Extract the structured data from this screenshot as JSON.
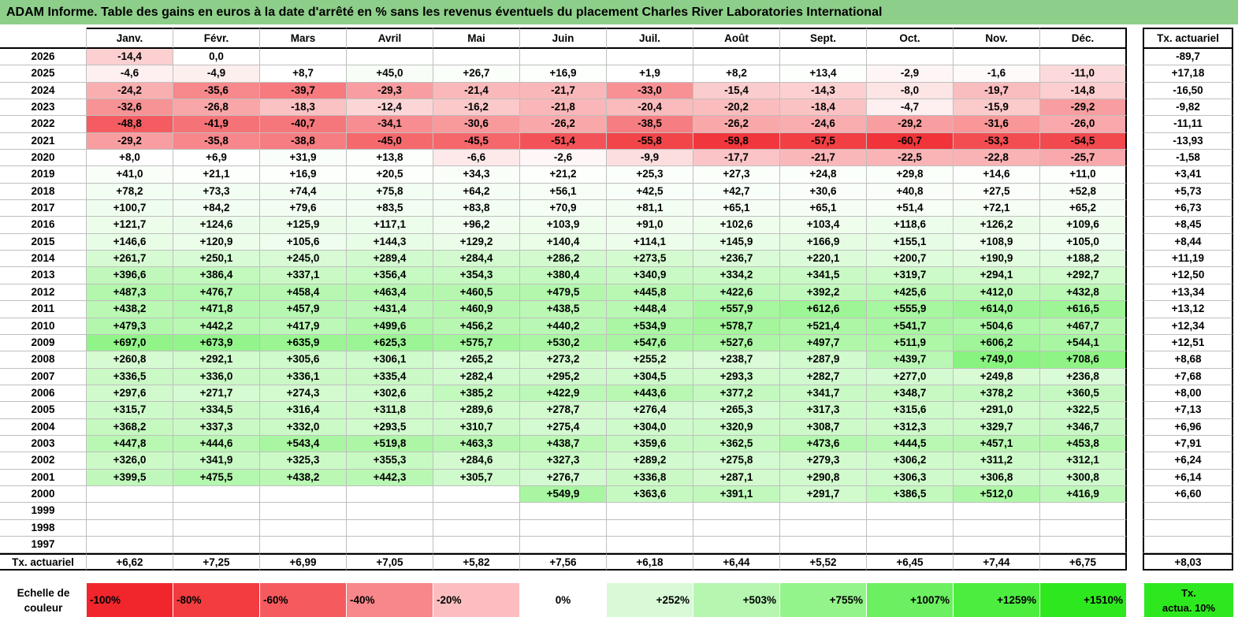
{
  "title": "ADAM Informe. Table des gains en euros à la date d'arrêté en % sans les revenus éventuels du placement Charles River Laboratories International",
  "months": [
    "Janv.",
    "Févr.",
    "Mars",
    "Avril",
    "Mai",
    "Juin",
    "Juil.",
    "Août",
    "Sept.",
    "Oct.",
    "Nov.",
    "Déc."
  ],
  "side_header": "Tx. actuariel",
  "rows": [
    {
      "year": "2026",
      "vals": [
        "-14,4",
        "0,0",
        "",
        "",
        "",
        "",
        "",
        "",
        "",
        "",
        "",
        ""
      ],
      "tx": "-89,7"
    },
    {
      "year": "2025",
      "vals": [
        "-4,6",
        "-4,9",
        "+8,7",
        "+45,0",
        "+26,7",
        "+16,9",
        "+1,9",
        "+8,2",
        "+13,4",
        "-2,9",
        "-1,6",
        "-11,0"
      ],
      "tx": "+17,18"
    },
    {
      "year": "2024",
      "vals": [
        "-24,2",
        "-35,6",
        "-39,7",
        "-29,3",
        "-21,4",
        "-21,7",
        "-33,0",
        "-15,4",
        "-14,3",
        "-8,0",
        "-19,7",
        "-14,8"
      ],
      "tx": "-16,50"
    },
    {
      "year": "2023",
      "vals": [
        "-32,6",
        "-26,8",
        "-18,3",
        "-12,4",
        "-16,2",
        "-21,8",
        "-20,4",
        "-20,2",
        "-18,4",
        "-4,7",
        "-15,9",
        "-29,2"
      ],
      "tx": "-9,82"
    },
    {
      "year": "2022",
      "vals": [
        "-48,8",
        "-41,9",
        "-40,7",
        "-34,1",
        "-30,6",
        "-26,2",
        "-38,5",
        "-26,2",
        "-24,6",
        "-29,2",
        "-31,6",
        "-26,0"
      ],
      "tx": "-11,11"
    },
    {
      "year": "2021",
      "vals": [
        "-29,2",
        "-35,8",
        "-38,8",
        "-45,0",
        "-45,5",
        "-51,4",
        "-55,8",
        "-59,8",
        "-57,5",
        "-60,7",
        "-53,3",
        "-54,5"
      ],
      "tx": "-13,93"
    },
    {
      "year": "2020",
      "vals": [
        "+8,0",
        "+6,9",
        "+31,9",
        "+13,8",
        "-6,6",
        "-2,6",
        "-9,9",
        "-17,7",
        "-21,7",
        "-22,5",
        "-22,8",
        "-25,7"
      ],
      "tx": "-1,58"
    },
    {
      "year": "2019",
      "vals": [
        "+41,0",
        "+21,1",
        "+16,9",
        "+20,5",
        "+34,3",
        "+21,2",
        "+25,3",
        "+27,3",
        "+24,8",
        "+29,8",
        "+14,6",
        "+11,0"
      ],
      "tx": "+3,41"
    },
    {
      "year": "2018",
      "vals": [
        "+78,2",
        "+73,3",
        "+74,4",
        "+75,8",
        "+64,2",
        "+56,1",
        "+42,5",
        "+42,7",
        "+30,6",
        "+40,8",
        "+27,5",
        "+52,8"
      ],
      "tx": "+5,73"
    },
    {
      "year": "2017",
      "vals": [
        "+100,7",
        "+84,2",
        "+79,6",
        "+83,5",
        "+83,8",
        "+70,9",
        "+81,1",
        "+65,1",
        "+65,1",
        "+51,4",
        "+72,1",
        "+65,2"
      ],
      "tx": "+6,73"
    },
    {
      "year": "2016",
      "vals": [
        "+121,7",
        "+124,6",
        "+125,9",
        "+117,1",
        "+96,2",
        "+103,9",
        "+91,0",
        "+102,6",
        "+103,4",
        "+118,6",
        "+126,2",
        "+109,6"
      ],
      "tx": "+8,45"
    },
    {
      "year": "2015",
      "vals": [
        "+146,6",
        "+120,9",
        "+105,6",
        "+144,3",
        "+129,2",
        "+140,4",
        "+114,1",
        "+145,9",
        "+166,9",
        "+155,1",
        "+108,9",
        "+105,0"
      ],
      "tx": "+8,44"
    },
    {
      "year": "2014",
      "vals": [
        "+261,7",
        "+250,1",
        "+245,0",
        "+289,4",
        "+284,4",
        "+286,2",
        "+273,5",
        "+236,7",
        "+220,1",
        "+200,7",
        "+190,9",
        "+188,2"
      ],
      "tx": "+11,19"
    },
    {
      "year": "2013",
      "vals": [
        "+396,6",
        "+386,4",
        "+337,1",
        "+356,4",
        "+354,3",
        "+380,4",
        "+340,9",
        "+334,2",
        "+341,5",
        "+319,7",
        "+294,1",
        "+292,7"
      ],
      "tx": "+12,50"
    },
    {
      "year": "2012",
      "vals": [
        "+487,3",
        "+476,7",
        "+458,4",
        "+463,4",
        "+460,5",
        "+479,5",
        "+445,8",
        "+422,6",
        "+392,2",
        "+425,6",
        "+412,0",
        "+432,8"
      ],
      "tx": "+13,34"
    },
    {
      "year": "2011",
      "vals": [
        "+438,2",
        "+471,8",
        "+457,9",
        "+431,4",
        "+460,9",
        "+438,5",
        "+448,4",
        "+557,9",
        "+612,6",
        "+555,9",
        "+614,0",
        "+616,5"
      ],
      "tx": "+13,12"
    },
    {
      "year": "2010",
      "vals": [
        "+479,3",
        "+442,2",
        "+417,9",
        "+499,6",
        "+456,2",
        "+440,2",
        "+534,9",
        "+578,7",
        "+521,4",
        "+541,7",
        "+504,6",
        "+467,7"
      ],
      "tx": "+12,34"
    },
    {
      "year": "2009",
      "vals": [
        "+697,0",
        "+673,9",
        "+635,9",
        "+625,3",
        "+575,7",
        "+530,2",
        "+547,6",
        "+527,6",
        "+497,7",
        "+511,9",
        "+606,2",
        "+544,1"
      ],
      "tx": "+12,51"
    },
    {
      "year": "2008",
      "vals": [
        "+260,8",
        "+292,1",
        "+305,6",
        "+306,1",
        "+265,2",
        "+273,2",
        "+255,2",
        "+238,7",
        "+287,9",
        "+439,7",
        "+749,0",
        "+708,6"
      ],
      "tx": "+8,68"
    },
    {
      "year": "2007",
      "vals": [
        "+336,5",
        "+336,0",
        "+336,1",
        "+335,4",
        "+282,4",
        "+295,2",
        "+304,5",
        "+293,3",
        "+282,7",
        "+277,0",
        "+249,8",
        "+236,8"
      ],
      "tx": "+7,68"
    },
    {
      "year": "2006",
      "vals": [
        "+297,6",
        "+271,7",
        "+274,3",
        "+302,6",
        "+385,2",
        "+422,9",
        "+443,6",
        "+377,2",
        "+341,7",
        "+348,7",
        "+378,2",
        "+360,5"
      ],
      "tx": "+8,00"
    },
    {
      "year": "2005",
      "vals": [
        "+315,7",
        "+334,5",
        "+316,4",
        "+311,8",
        "+289,6",
        "+278,7",
        "+276,4",
        "+265,3",
        "+317,3",
        "+315,6",
        "+291,0",
        "+322,5"
      ],
      "tx": "+7,13"
    },
    {
      "year": "2004",
      "vals": [
        "+368,2",
        "+337,3",
        "+332,0",
        "+293,5",
        "+310,7",
        "+275,4",
        "+304,0",
        "+320,9",
        "+308,7",
        "+312,3",
        "+329,7",
        "+346,7"
      ],
      "tx": "+6,96"
    },
    {
      "year": "2003",
      "vals": [
        "+447,8",
        "+444,6",
        "+543,4",
        "+519,8",
        "+463,3",
        "+438,7",
        "+359,6",
        "+362,5",
        "+473,6",
        "+444,5",
        "+457,1",
        "+453,8"
      ],
      "tx": "+7,91"
    },
    {
      "year": "2002",
      "vals": [
        "+326,0",
        "+341,9",
        "+325,3",
        "+355,3",
        "+284,6",
        "+327,3",
        "+289,2",
        "+275,8",
        "+279,3",
        "+306,2",
        "+311,2",
        "+312,1"
      ],
      "tx": "+6,24"
    },
    {
      "year": "2001",
      "vals": [
        "+399,5",
        "+475,5",
        "+438,2",
        "+442,3",
        "+305,7",
        "+276,7",
        "+336,8",
        "+287,1",
        "+290,8",
        "+306,3",
        "+306,8",
        "+300,8"
      ],
      "tx": "+6,14"
    },
    {
      "year": "2000",
      "vals": [
        "",
        "",
        "",
        "",
        "",
        "+549,9",
        "+363,6",
        "+391,1",
        "+291,7",
        "+386,5",
        "+512,0",
        "+416,9"
      ],
      "tx": "+6,60"
    },
    {
      "year": "1999",
      "vals": [
        "",
        "",
        "",
        "",
        "",
        "",
        "",
        "",
        "",
        "",
        "",
        ""
      ],
      "tx": ""
    },
    {
      "year": "1998",
      "vals": [
        "",
        "",
        "",
        "",
        "",
        "",
        "",
        "",
        "",
        "",
        "",
        ""
      ],
      "tx": ""
    },
    {
      "year": "1997",
      "vals": [
        "",
        "",
        "",
        "",
        "",
        "",
        "",
        "",
        "",
        "",
        "",
        ""
      ],
      "tx": ""
    }
  ],
  "footer": {
    "label": "Tx. actuariel",
    "vals": [
      "+6,62",
      "+7,25",
      "+6,99",
      "+7,05",
      "+5,82",
      "+7,56",
      "+6,18",
      "+6,44",
      "+5,52",
      "+6,45",
      "+7,44",
      "+6,75"
    ],
    "tx": "+8,03"
  },
  "legend": {
    "title_line1": "Echelle de",
    "title_line2": "couleur",
    "items": [
      {
        "label": "-100%",
        "color": "#f0262c",
        "align": "left"
      },
      {
        "label": "-80%",
        "color": "#f23c40",
        "align": "left"
      },
      {
        "label": "-60%",
        "color": "#f55a5e",
        "align": "left"
      },
      {
        "label": "-40%",
        "color": "#f7878a",
        "align": "left"
      },
      {
        "label": "-20%",
        "color": "#fbbdbf",
        "align": "left"
      },
      {
        "label": "0%",
        "color": "#ffffff",
        "align": "center"
      },
      {
        "label": "+252%",
        "color": "#d8fad6",
        "align": "right"
      },
      {
        "label": "+503%",
        "color": "#b6f6b0",
        "align": "right"
      },
      {
        "label": "+755%",
        "color": "#93f48b",
        "align": "right"
      },
      {
        "label": "+1007%",
        "color": "#6cef61",
        "align": "right"
      },
      {
        "label": "+1259%",
        "color": "#4ded40",
        "align": "right"
      },
      {
        "label": "+1510%",
        "color": "#2ee81f",
        "align": "right"
      }
    ],
    "side_line1": "Tx.",
    "side_line2": "actua. 10%",
    "side_color": "#2ee81f"
  },
  "colors": {
    "title_bg": "#8dcf8a",
    "neg_max": "#f0262c",
    "pos_max": "#2ee81f"
  }
}
